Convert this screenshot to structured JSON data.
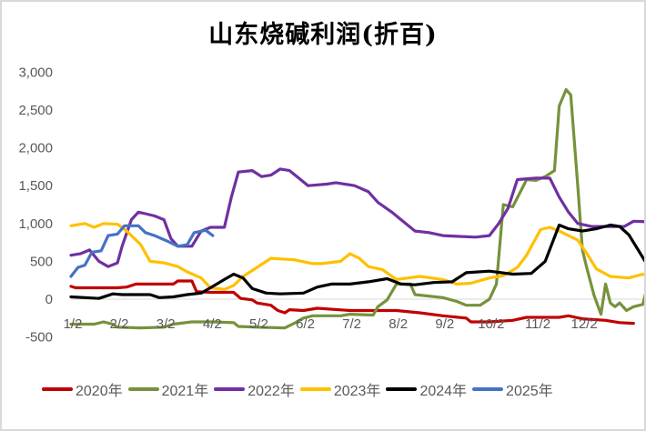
{
  "chart_data": {
    "type": "line",
    "title": "山东烧碱利润(折百)",
    "xlabel": "",
    "ylabel": "",
    "ylim": [
      -500,
      3000
    ],
    "yticks": [
      3000,
      2500,
      2000,
      1500,
      1000,
      500,
      0,
      -500
    ],
    "ytick_labels": [
      "3,000",
      "2,500",
      "2,000",
      "1,500",
      "1,000",
      "500",
      "0",
      "-500"
    ],
    "x_tick_labels": [
      "1/2",
      "2/2",
      "3/2",
      "4/2",
      "5/2",
      "6/2",
      "7/2",
      "8/2",
      "9/2",
      "10/2",
      "11/2",
      "12/2"
    ],
    "grid": false,
    "legend_position": "bottom",
    "x_unit": "month index (0 = 1/2, 11 = 12/2)",
    "series": [
      {
        "name": "2020年",
        "color": "#C00000",
        "points": [
          [
            0,
            170
          ],
          [
            0.1,
            150
          ],
          [
            0.5,
            150
          ],
          [
            1,
            150
          ],
          [
            1.2,
            160
          ],
          [
            1.4,
            200
          ],
          [
            1.7,
            200
          ],
          [
            2.2,
            200
          ],
          [
            2.3,
            240
          ],
          [
            2.6,
            240
          ],
          [
            2.7,
            100
          ],
          [
            3,
            90
          ],
          [
            3.5,
            90
          ],
          [
            3.65,
            10
          ],
          [
            3.9,
            -10
          ],
          [
            4,
            -50
          ],
          [
            4.3,
            -80
          ],
          [
            4.45,
            -150
          ],
          [
            4.6,
            -180
          ],
          [
            4.7,
            -140
          ],
          [
            5,
            -150
          ],
          [
            5.3,
            -120
          ],
          [
            6,
            -150
          ],
          [
            6.5,
            -150
          ],
          [
            7,
            -150
          ],
          [
            7.5,
            -180
          ],
          [
            8,
            -220
          ],
          [
            8.5,
            -250
          ],
          [
            8.6,
            -300
          ],
          [
            9,
            -300
          ],
          [
            9.5,
            -280
          ],
          [
            9.8,
            -240
          ],
          [
            10.5,
            -240
          ],
          [
            10.7,
            -220
          ],
          [
            11,
            -260
          ],
          [
            11.5,
            -280
          ],
          [
            11.8,
            -310
          ],
          [
            12.1,
            -320
          ]
        ]
      },
      {
        "name": "2021年",
        "color": "#76923C",
        "points": [
          [
            0,
            -330
          ],
          [
            0.5,
            -330
          ],
          [
            0.7,
            -300
          ],
          [
            0.9,
            -330
          ],
          [
            1,
            -370
          ],
          [
            1.5,
            -380
          ],
          [
            2,
            -370
          ],
          [
            2.2,
            -330
          ],
          [
            2.6,
            -300
          ],
          [
            3,
            -300
          ],
          [
            3.5,
            -310
          ],
          [
            3.6,
            -360
          ],
          [
            4,
            -370
          ],
          [
            4.6,
            -380
          ],
          [
            4.8,
            -320
          ],
          [
            5,
            -250
          ],
          [
            5.2,
            -220
          ],
          [
            5.8,
            -220
          ],
          [
            6,
            -200
          ],
          [
            6.5,
            -210
          ],
          [
            6.6,
            -100
          ],
          [
            6.8,
            -10
          ],
          [
            7,
            200
          ],
          [
            7.3,
            200
          ],
          [
            7.4,
            60
          ],
          [
            8,
            20
          ],
          [
            8.3,
            -30
          ],
          [
            8.5,
            -80
          ],
          [
            8.8,
            -80
          ],
          [
            9,
            0
          ],
          [
            9.15,
            200
          ],
          [
            9.3,
            1250
          ],
          [
            9.5,
            1220
          ],
          [
            9.8,
            1580
          ],
          [
            10,
            1570
          ],
          [
            10.2,
            1620
          ],
          [
            10.4,
            1700
          ],
          [
            10.5,
            2550
          ],
          [
            10.65,
            2770
          ],
          [
            10.75,
            2700
          ],
          [
            10.9,
            1500
          ],
          [
            11,
            650
          ],
          [
            11.1,
            400
          ],
          [
            11.25,
            50
          ],
          [
            11.4,
            -200
          ],
          [
            11.5,
            200
          ],
          [
            11.6,
            -50
          ],
          [
            11.7,
            -100
          ],
          [
            11.8,
            -50
          ],
          [
            11.95,
            -150
          ],
          [
            12.1,
            -100
          ],
          [
            12.3,
            -70
          ],
          [
            12.45,
            300
          ],
          [
            12.6,
            500
          ],
          [
            12.75,
            700
          ],
          [
            12.9,
            700
          ]
        ]
      },
      {
        "name": "2022年",
        "color": "#7030A0",
        "points": [
          [
            0,
            580
          ],
          [
            0.2,
            600
          ],
          [
            0.4,
            650
          ],
          [
            0.6,
            500
          ],
          [
            0.8,
            430
          ],
          [
            1,
            480
          ],
          [
            1.1,
            700
          ],
          [
            1.3,
            1050
          ],
          [
            1.45,
            1150
          ],
          [
            1.6,
            1130
          ],
          [
            1.8,
            1100
          ],
          [
            2,
            1050
          ],
          [
            2.15,
            800
          ],
          [
            2.3,
            700
          ],
          [
            2.6,
            700
          ],
          [
            2.8,
            900
          ],
          [
            3,
            950
          ],
          [
            3.3,
            950
          ],
          [
            3.45,
            1350
          ],
          [
            3.6,
            1680
          ],
          [
            3.9,
            1700
          ],
          [
            4.1,
            1620
          ],
          [
            4.3,
            1640
          ],
          [
            4.5,
            1720
          ],
          [
            4.7,
            1700
          ],
          [
            4.9,
            1600
          ],
          [
            5.1,
            1500
          ],
          [
            5.5,
            1520
          ],
          [
            5.7,
            1540
          ],
          [
            6.1,
            1500
          ],
          [
            6.4,
            1420
          ],
          [
            6.6,
            1280
          ],
          [
            6.9,
            1150
          ],
          [
            7.1,
            1050
          ],
          [
            7.4,
            900
          ],
          [
            7.7,
            880
          ],
          [
            8,
            840
          ],
          [
            8.3,
            830
          ],
          [
            8.7,
            820
          ],
          [
            9,
            840
          ],
          [
            9.2,
            1000
          ],
          [
            9.4,
            1200
          ],
          [
            9.6,
            1580
          ],
          [
            10,
            1600
          ],
          [
            10.3,
            1600
          ],
          [
            10.5,
            1350
          ],
          [
            10.7,
            1150
          ],
          [
            10.9,
            1000
          ],
          [
            11.2,
            960
          ],
          [
            11.6,
            960
          ],
          [
            11.9,
            960
          ],
          [
            12.1,
            1030
          ],
          [
            12.5,
            1020
          ],
          [
            12.9,
            1000
          ]
        ]
      },
      {
        "name": "2023年",
        "color": "#FFC000",
        "points": [
          [
            0,
            970
          ],
          [
            0.3,
            1000
          ],
          [
            0.5,
            950
          ],
          [
            0.7,
            1000
          ],
          [
            1,
            990
          ],
          [
            1.2,
            900
          ],
          [
            1.5,
            720
          ],
          [
            1.7,
            500
          ],
          [
            2,
            480
          ],
          [
            2.3,
            430
          ],
          [
            2.5,
            360
          ],
          [
            2.8,
            280
          ],
          [
            3,
            150
          ],
          [
            3.3,
            130
          ],
          [
            3.5,
            180
          ],
          [
            3.7,
            300
          ],
          [
            4,
            420
          ],
          [
            4.3,
            540
          ],
          [
            4.8,
            520
          ],
          [
            5.2,
            470
          ],
          [
            5.4,
            470
          ],
          [
            5.8,
            500
          ],
          [
            6,
            600
          ],
          [
            6.2,
            540
          ],
          [
            6.4,
            430
          ],
          [
            6.7,
            390
          ],
          [
            7,
            260
          ],
          [
            7.5,
            300
          ],
          [
            8,
            260
          ],
          [
            8.3,
            200
          ],
          [
            8.6,
            210
          ],
          [
            9,
            280
          ],
          [
            9.3,
            310
          ],
          [
            9.6,
            420
          ],
          [
            9.8,
            580
          ],
          [
            10.1,
            920
          ],
          [
            10.3,
            950
          ],
          [
            10.5,
            900
          ],
          [
            10.9,
            780
          ],
          [
            11.1,
            600
          ],
          [
            11.3,
            400
          ],
          [
            11.6,
            300
          ],
          [
            12,
            280
          ],
          [
            12.3,
            330
          ],
          [
            12.6,
            250
          ],
          [
            12.9,
            150
          ]
        ]
      },
      {
        "name": "2024年",
        "color": "#000000",
        "points": [
          [
            0,
            30
          ],
          [
            0.3,
            20
          ],
          [
            0.6,
            10
          ],
          [
            0.9,
            70
          ],
          [
            1.1,
            60
          ],
          [
            1.4,
            60
          ],
          [
            1.7,
            60
          ],
          [
            1.9,
            20
          ],
          [
            2.2,
            30
          ],
          [
            2.5,
            60
          ],
          [
            2.8,
            80
          ],
          [
            3,
            150
          ],
          [
            3.3,
            260
          ],
          [
            3.5,
            330
          ],
          [
            3.7,
            280
          ],
          [
            3.9,
            140
          ],
          [
            4.2,
            80
          ],
          [
            4.5,
            70
          ],
          [
            5,
            80
          ],
          [
            5.3,
            160
          ],
          [
            5.6,
            200
          ],
          [
            6,
            200
          ],
          [
            6.4,
            230
          ],
          [
            6.8,
            270
          ],
          [
            7.1,
            200
          ],
          [
            7.4,
            190
          ],
          [
            7.8,
            220
          ],
          [
            8.2,
            230
          ],
          [
            8.5,
            350
          ],
          [
            9,
            370
          ],
          [
            9.5,
            330
          ],
          [
            9.9,
            340
          ],
          [
            10.2,
            500
          ],
          [
            10.5,
            980
          ],
          [
            10.7,
            930
          ],
          [
            11,
            900
          ],
          [
            11.3,
            930
          ],
          [
            11.6,
            980
          ],
          [
            11.8,
            960
          ],
          [
            12,
            850
          ],
          [
            12.2,
            650
          ],
          [
            12.4,
            450
          ],
          [
            12.6,
            390
          ],
          [
            12.9,
            380
          ]
        ]
      },
      {
        "name": "2025年",
        "color": "#4472C4",
        "points": [
          [
            0,
            300
          ],
          [
            0.15,
            420
          ],
          [
            0.3,
            450
          ],
          [
            0.45,
            620
          ],
          [
            0.65,
            640
          ],
          [
            0.8,
            840
          ],
          [
            1,
            860
          ],
          [
            1.15,
            970
          ],
          [
            1.45,
            970
          ],
          [
            1.6,
            880
          ],
          [
            1.8,
            840
          ],
          [
            2.1,
            760
          ],
          [
            2.3,
            700
          ],
          [
            2.5,
            720
          ],
          [
            2.65,
            880
          ],
          [
            2.9,
            910
          ],
          [
            3.05,
            840
          ]
        ]
      }
    ]
  },
  "legend": {
    "items": [
      {
        "label": "2020年",
        "color": "#C00000"
      },
      {
        "label": "2021年",
        "color": "#76923C"
      },
      {
        "label": "2022年",
        "color": "#7030A0"
      },
      {
        "label": "2023年",
        "color": "#FFC000"
      },
      {
        "label": "2024年",
        "color": "#000000"
      },
      {
        "label": "2025年",
        "color": "#4472C4"
      }
    ]
  }
}
